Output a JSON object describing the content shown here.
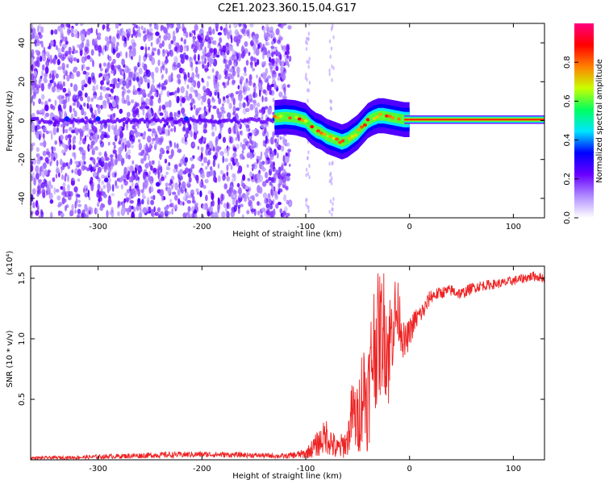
{
  "title": "C2E1.2023.360.15.04.G17",
  "chart_data": [
    {
      "type": "heatmap",
      "title": "C2E1.2023.360.15.04.G17",
      "xlabel": "Height of straight line (km)",
      "ylabel": "Frequency (Hz)",
      "xlim": [
        -365,
        130
      ],
      "ylim": [
        -50,
        50
      ],
      "xticks": [
        -300,
        -200,
        -100,
        0,
        100
      ],
      "yticks": [
        -40,
        -20,
        0,
        20,
        40
      ],
      "colorbar": {
        "label": "Normalized spectral amplitude",
        "range": [
          0,
          1
        ],
        "ticks": [
          "0.0",
          "0.2",
          "0.4",
          "0.6",
          "0.8"
        ],
        "colormap": [
          "#ffffff",
          "#b08cff",
          "#6a00ff",
          "#0000ff",
          "#00e5ff",
          "#00ff60",
          "#c8ff00",
          "#ff8000",
          "#ff0000",
          "#ff007f"
        ]
      },
      "signal_ridge": {
        "x": [
          -130,
          -120,
          -110,
          -100,
          -95,
          -90,
          -85,
          -80,
          -75,
          -70,
          -65,
          -60,
          -55,
          -50,
          -45,
          -40,
          -35,
          -30,
          -25,
          -20,
          -15,
          -10,
          -5,
          0,
          130
        ],
        "y": [
          1.5,
          2,
          1.5,
          0,
          -3,
          -5,
          -6,
          -8,
          -9,
          -10,
          -11,
          -10,
          -8,
          -6,
          -3,
          0,
          1.5,
          2.5,
          2.5,
          2,
          1.5,
          1,
          0.5,
          0.5,
          0.5
        ]
      },
      "noise_floor_until_x": -115
    },
    {
      "type": "line",
      "xlabel": "Height of straight line (km)",
      "ylabel": "SNR (10 * v/v)",
      "y_multiplier": "(x10⁴)",
      "xlim": [
        -365,
        130
      ],
      "ylim": [
        0,
        16000
      ],
      "xticks": [
        -300,
        -200,
        -100,
        0,
        100
      ],
      "yticks": [
        "0.5",
        "1.0",
        "1.5"
      ],
      "line_color": "#ee2222",
      "series": [
        {
          "x": [
            -365,
            -320,
            -280,
            -240,
            -200,
            -160,
            -120,
            -100,
            -90,
            -80,
            -70,
            -60,
            -55,
            -50,
            -45,
            -40,
            -35,
            -30,
            -25,
            -20,
            -15,
            -10,
            -5,
            0,
            5,
            10,
            15,
            20,
            30,
            40,
            50,
            60,
            70,
            80,
            90,
            100,
            110,
            120,
            130
          ],
          "y": [
            150,
            200,
            300,
            400,
            450,
            400,
            300,
            500,
            1200,
            2000,
            800,
            1500,
            4000,
            3000,
            6000,
            5000,
            9500,
            10000,
            11000,
            9000,
            12000,
            12000,
            9500,
            10500,
            11500,
            12000,
            12500,
            13500,
            13800,
            14000,
            13700,
            14200,
            14400,
            14500,
            14600,
            14800,
            15000,
            15200,
            15000
          ],
          "noise": [
            120,
            150,
            200,
            250,
            250,
            220,
            200,
            400,
            1000,
            1500,
            1000,
            1200,
            3000,
            3000,
            4500,
            4500,
            5500,
            5500,
            5000,
            5000,
            3500,
            2500,
            1500,
            1200,
            1000,
            800,
            800,
            600,
            500,
            500,
            500,
            450,
            450,
            400,
            400,
            400,
            400,
            400,
            400
          ]
        }
      ]
    }
  ]
}
